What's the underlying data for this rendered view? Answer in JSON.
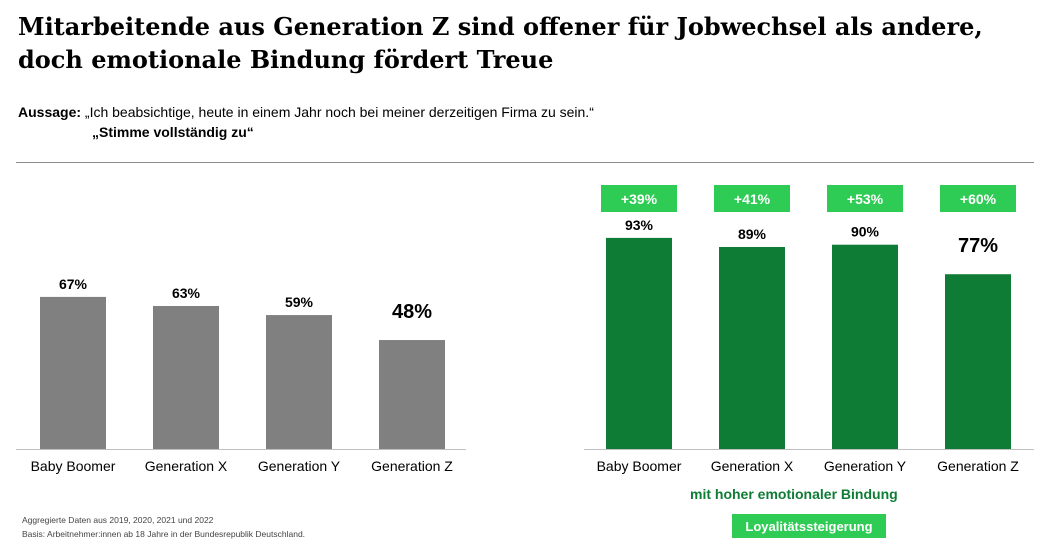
{
  "title": {
    "line1": "Mitarbeitende aus Generation Z sind offener für Jobwechsel als andere,",
    "line2": "doch emotionale Bindung fördert Treue"
  },
  "statement": {
    "label": "Aussage:",
    "text": "„Ich beabsichtige, heute in einem Jahr noch bei meiner derzeitigen Firma zu sein.“",
    "answer": "„Stimme vollständig zu“"
  },
  "chart_data": [
    {
      "type": "bar",
      "categories": [
        "Baby Boomer",
        "Generation X",
        "Generation Y",
        "Generation Z"
      ],
      "values": [
        67,
        63,
        59,
        48
      ],
      "data_labels": [
        "67%",
        "63%",
        "59%",
        "48%"
      ],
      "color": "#808080",
      "ylim": [
        0,
        100
      ]
    },
    {
      "type": "bar",
      "categories": [
        "Baby Boomer",
        "Generation X",
        "Generation Y",
        "Generation Z"
      ],
      "values": [
        93,
        89,
        90,
        77
      ],
      "data_labels": [
        "93%",
        "89%",
        "90%",
        "77%"
      ],
      "increase_labels": [
        "+39%",
        "+41%",
        "+53%",
        "+60%"
      ],
      "color": "#0e7c35",
      "badge_color": "#2fcc55",
      "ylim": [
        0,
        100
      ]
    }
  ],
  "legend": {
    "group_label": "mit hoher emotionaler Bindung",
    "badge": "Loyalitätssteigerung"
  },
  "footnotes": {
    "line1": "Aggregierte Daten aus 2019, 2020, 2021 und 2022",
    "line2": "Basis: Arbeitnehmer:innen ab 18 Jahre in der Bundesrepublik Deutschland."
  }
}
